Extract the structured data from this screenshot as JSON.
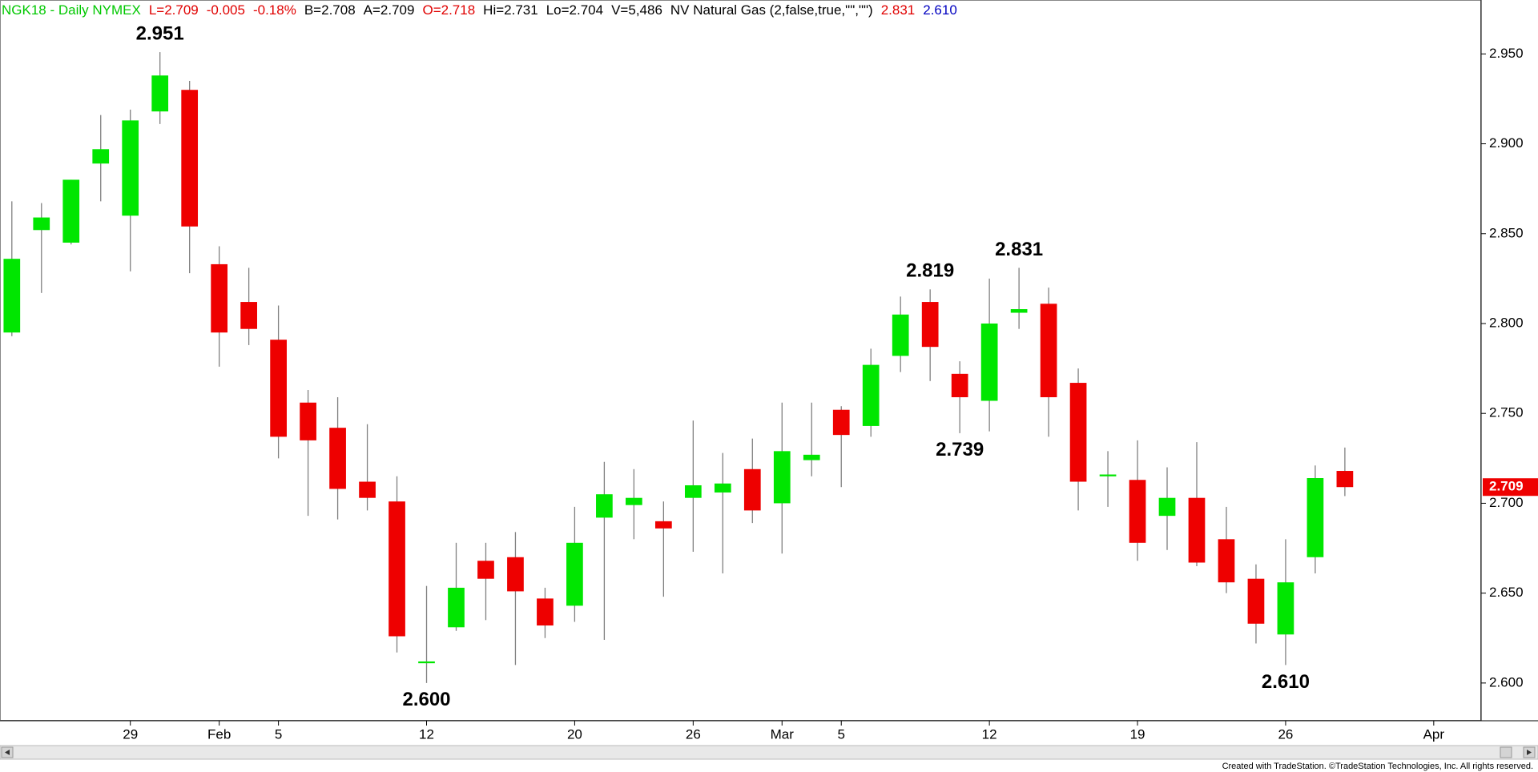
{
  "chart_data": {
    "type": "candlestick",
    "header": [
      {
        "text": "NGK18 - Daily  NYMEX",
        "color": "#00c800"
      },
      {
        "text": "L=2.709",
        "color": "#e00000"
      },
      {
        "text": "-0.005",
        "color": "#e00000"
      },
      {
        "text": "-0.18%",
        "color": "#e00000"
      },
      {
        "text": "B=2.708",
        "color": "#000000"
      },
      {
        "text": "A=2.709",
        "color": "#000000"
      },
      {
        "text": "O=2.718",
        "color": "#e00000"
      },
      {
        "text": "Hi=2.731",
        "color": "#000000"
      },
      {
        "text": "Lo=2.704",
        "color": "#000000"
      },
      {
        "text": "V=5,486",
        "color": "#000000"
      },
      {
        "text": "NV Natural Gas (2,false,true,\"\",\"\")",
        "color": "#000000"
      },
      {
        "text": "2.831",
        "color": "#e00000"
      },
      {
        "text": "2.610",
        "color": "#0000c0"
      }
    ],
    "open": [
      2.795,
      2.852,
      2.845,
      2.889,
      2.86,
      2.918,
      2.93,
      2.833,
      2.812,
      2.791,
      2.756,
      2.742,
      2.712,
      2.701,
      2.611,
      2.631,
      2.668,
      2.67,
      2.647,
      2.643,
      2.692,
      2.699,
      2.69,
      2.703,
      2.706,
      2.719,
      2.7,
      2.724,
      2.752,
      2.743,
      2.782,
      2.812,
      2.772,
      2.757,
      2.806,
      2.811,
      2.767,
      2.715,
      2.713,
      2.693,
      2.703,
      2.68,
      2.658,
      2.627,
      2.67,
      2.718
    ],
    "high": [
      2.868,
      2.867,
      2.88,
      2.916,
      2.919,
      2.951,
      2.935,
      2.843,
      2.831,
      2.81,
      2.763,
      2.759,
      2.744,
      2.715,
      2.654,
      2.678,
      2.678,
      2.684,
      2.653,
      2.698,
      2.723,
      2.719,
      2.701,
      2.746,
      2.728,
      2.736,
      2.756,
      2.756,
      2.754,
      2.786,
      2.815,
      2.819,
      2.779,
      2.825,
      2.831,
      2.82,
      2.775,
      2.729,
      2.735,
      2.72,
      2.734,
      2.698,
      2.666,
      2.68,
      2.721,
      2.731
    ],
    "low": [
      2.793,
      2.817,
      2.844,
      2.868,
      2.829,
      2.911,
      2.828,
      2.776,
      2.788,
      2.725,
      2.693,
      2.691,
      2.696,
      2.617,
      2.6,
      2.629,
      2.635,
      2.61,
      2.625,
      2.634,
      2.624,
      2.68,
      2.648,
      2.673,
      2.661,
      2.689,
      2.672,
      2.715,
      2.709,
      2.737,
      2.773,
      2.768,
      2.739,
      2.74,
      2.797,
      2.737,
      2.696,
      2.698,
      2.668,
      2.674,
      2.665,
      2.65,
      2.622,
      2.61,
      2.661,
      2.704
    ],
    "close": [
      2.836,
      2.859,
      2.88,
      2.897,
      2.913,
      2.938,
      2.854,
      2.795,
      2.797,
      2.737,
      2.735,
      2.708,
      2.703,
      2.626,
      2.612,
      2.653,
      2.658,
      2.651,
      2.632,
      2.678,
      2.705,
      2.703,
      2.686,
      2.71,
      2.711,
      2.696,
      2.729,
      2.727,
      2.738,
      2.777,
      2.805,
      2.787,
      2.759,
      2.8,
      2.808,
      2.759,
      2.712,
      2.716,
      2.678,
      2.703,
      2.667,
      2.656,
      2.633,
      2.656,
      2.714,
      2.709
    ],
    "up_color": "#00e600",
    "down_color": "#ee0000",
    "wick_color": "#808080",
    "xlim": [
      -0.4,
      49.6
    ],
    "xticks": [
      {
        "value": 4,
        "label": "29"
      },
      {
        "value": 7,
        "label": "Feb"
      },
      {
        "value": 9,
        "label": "5"
      },
      {
        "value": 14,
        "label": "12"
      },
      {
        "value": 19,
        "label": "20"
      },
      {
        "value": 23,
        "label": "26"
      },
      {
        "value": 26,
        "label": "Mar"
      },
      {
        "value": 28,
        "label": "5"
      },
      {
        "value": 33,
        "label": "12"
      },
      {
        "value": 38,
        "label": "19"
      },
      {
        "value": 43,
        "label": "26"
      },
      {
        "value": 48,
        "label": "Apr"
      }
    ],
    "ylim": [
      2.579,
      2.98
    ],
    "yticks": [
      {
        "value": 2.6,
        "label": "2.600"
      },
      {
        "value": 2.65,
        "label": "2.650"
      },
      {
        "value": 2.7,
        "label": "2.700"
      },
      {
        "value": 2.75,
        "label": "2.750"
      },
      {
        "value": 2.8,
        "label": "2.800"
      },
      {
        "value": 2.85,
        "label": "2.850"
      },
      {
        "value": 2.9,
        "label": "2.900"
      },
      {
        "value": 2.95,
        "label": "2.950"
      }
    ],
    "annotations": [
      {
        "at": 5,
        "value": 2.951,
        "label": "2.951",
        "position": "above"
      },
      {
        "at": 14,
        "value": 2.6,
        "label": "2.600",
        "position": "below"
      },
      {
        "at": 31,
        "value": 2.819,
        "label": "2.819",
        "position": "above"
      },
      {
        "at": 32,
        "value": 2.739,
        "label": "2.739",
        "position": "below"
      },
      {
        "at": 34,
        "value": 2.831,
        "label": "2.831",
        "position": "above"
      },
      {
        "at": 43,
        "value": 2.61,
        "label": "2.610",
        "position": "below"
      }
    ],
    "last_price": 2.709,
    "last_price_color": "#ee0000",
    "footer": "Created with TradeStation. ©TradeStation Technologies, Inc. All rights reserved."
  }
}
